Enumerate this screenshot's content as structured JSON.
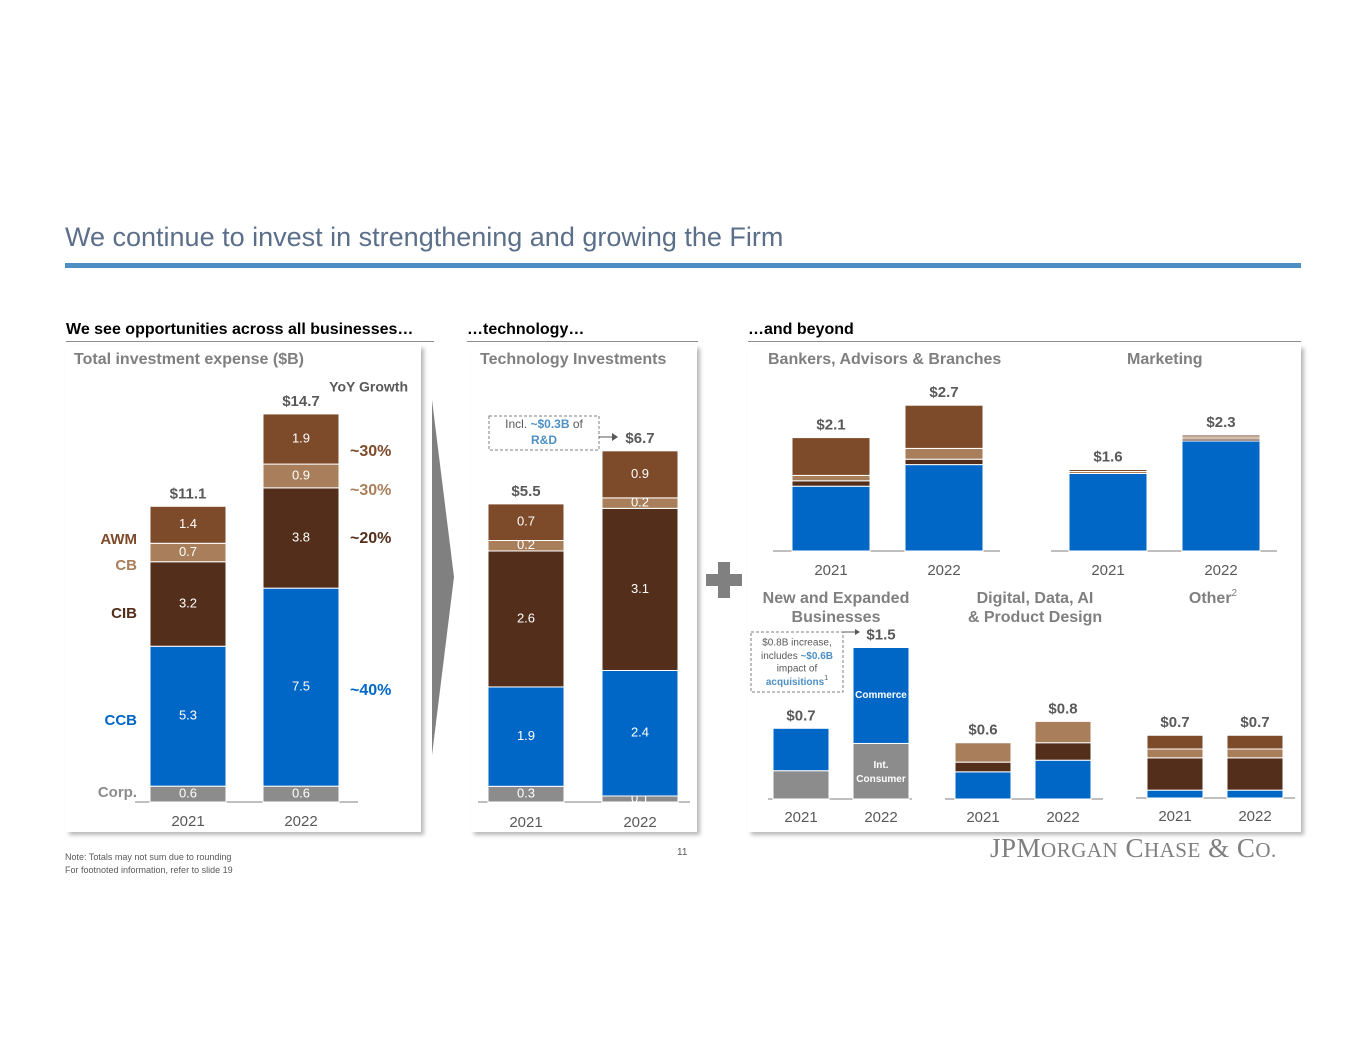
{
  "title": "We continue to invest in strengthening and growing the Firm",
  "sections": {
    "businesses": "We see opportunities across all businesses…",
    "technology": "…technology…",
    "beyond": "…and beyond"
  },
  "page_number": "11",
  "notes": [
    "Note: Totals may not sum due to rounding",
    "For footnoted information, refer to slide 19"
  ],
  "logo": "JPMorgan Chase & Co.",
  "colors": {
    "ccb": "#0067c6",
    "cib": "#522e1b",
    "cb": "#a87f5a",
    "awm": "#7d4a2a",
    "corp": "#8c8c8c",
    "accent_rule": "#4d8fc4",
    "title": "#5b6f8a"
  },
  "icons": {
    "divider_arrow": "chevron-arrow-icon",
    "plus": "plus-icon"
  },
  "chart_data": [
    {
      "id": "total-investment",
      "type": "bar",
      "stacked": true,
      "title": "Total investment expense ($B)",
      "categories": [
        "2021",
        "2022"
      ],
      "series": [
        {
          "name": "Corp.",
          "values": [
            0.6,
            0.6
          ]
        },
        {
          "name": "CCB",
          "values": [
            5.3,
            7.5
          ]
        },
        {
          "name": "CIB",
          "values": [
            3.2,
            3.8
          ]
        },
        {
          "name": "CB",
          "values": [
            0.7,
            0.9
          ]
        },
        {
          "name": "AWM",
          "values": [
            1.4,
            1.9
          ]
        }
      ],
      "totals": [
        "$11.1",
        "$14.7"
      ],
      "growth_header": "YoY Growth",
      "growth": {
        "AWM": "~30%",
        "CB": "~30%",
        "CIB": "~20%",
        "CCB": "~40%"
      }
    },
    {
      "id": "technology-investments",
      "type": "bar",
      "stacked": true,
      "title": "Technology Investments",
      "categories": [
        "2021",
        "2022"
      ],
      "series": [
        {
          "name": "Corp.",
          "values": [
            0.3,
            0.1
          ]
        },
        {
          "name": "CCB",
          "values": [
            1.9,
            2.4
          ]
        },
        {
          "name": "CIB",
          "values": [
            2.6,
            3.1
          ]
        },
        {
          "name": "CB",
          "values": [
            0.2,
            0.2
          ]
        },
        {
          "name": "AWM",
          "values": [
            0.7,
            0.9
          ]
        }
      ],
      "totals": [
        "$5.5",
        "$6.7"
      ],
      "callout": {
        "prefix": "Incl. ",
        "highlight": "~$0.3B",
        "middle": " of",
        "line2": "R&D"
      }
    },
    {
      "id": "bankers-advisors-branches",
      "type": "bar",
      "stacked": true,
      "title": "Bankers, Advisors & Branches",
      "categories": [
        "2021",
        "2022"
      ],
      "series": [
        {
          "name": "CCB",
          "values": [
            1.2,
            1.6
          ]
        },
        {
          "name": "CIB",
          "values": [
            0.1,
            0.1
          ]
        },
        {
          "name": "CB",
          "values": [
            0.1,
            0.2
          ]
        },
        {
          "name": "AWM",
          "values": [
            0.7,
            0.8
          ]
        }
      ],
      "totals": [
        "$2.1",
        "$2.7"
      ]
    },
    {
      "id": "marketing",
      "type": "bar",
      "stacked": true,
      "title": "Marketing",
      "categories": [
        "2021",
        "2022"
      ],
      "series": [
        {
          "name": "CCB",
          "values": [
            1.55,
            2.2
          ]
        },
        {
          "name": "CIB",
          "values": [
            0.0,
            0.01
          ]
        },
        {
          "name": "CB",
          "values": [
            0.01,
            0.03
          ]
        },
        {
          "name": "AWM",
          "values": [
            0.02,
            0.03
          ]
        }
      ],
      "totals": [
        "$1.6",
        "$2.3"
      ]
    },
    {
      "id": "new-expanded-businesses",
      "type": "bar",
      "stacked": true,
      "title": "New and Expanded Businesses",
      "categories": [
        "2021",
        "2022"
      ],
      "series": [
        {
          "name": "Int. Consumer",
          "values": [
            0.28,
            0.55
          ]
        },
        {
          "name": "Commerce",
          "values": [
            0.42,
            0.95
          ]
        }
      ],
      "segment_labels": {
        "Commerce": "Commerce",
        "Int. Consumer": "Int. Consumer"
      },
      "totals": [
        "$0.7",
        "$1.5"
      ],
      "callout": {
        "line1": "$0.8B increase,",
        "line2_prefix": "includes ",
        "line2_highlight": "~$0.6B",
        "line3": "impact of",
        "line4": "acquisitions",
        "footnote": "1"
      }
    },
    {
      "id": "digital-data-ai",
      "type": "bar",
      "stacked": true,
      "title": "Digital, Data, AI & Product Design",
      "title_lines": [
        "Digital, Data, AI",
        "& Product Design"
      ],
      "categories": [
        "2021",
        "2022"
      ],
      "series": [
        {
          "name": "CCB",
          "values": [
            0.28,
            0.4
          ]
        },
        {
          "name": "CIB",
          "values": [
            0.1,
            0.18
          ]
        },
        {
          "name": "CB",
          "values": [
            0.2,
            0.22
          ]
        }
      ],
      "totals": [
        "$0.6",
        "$0.8"
      ]
    },
    {
      "id": "other",
      "type": "bar",
      "stacked": true,
      "title": "Other",
      "footnote": "2",
      "categories": [
        "2021",
        "2022"
      ],
      "series": [
        {
          "name": "CCB",
          "values": [
            0.08,
            0.08
          ]
        },
        {
          "name": "CIB",
          "values": [
            0.33,
            0.33
          ]
        },
        {
          "name": "CB",
          "values": [
            0.09,
            0.09
          ]
        },
        {
          "name": "AWM",
          "values": [
            0.14,
            0.14
          ]
        }
      ],
      "totals": [
        "$0.7",
        "$0.7"
      ]
    }
  ]
}
